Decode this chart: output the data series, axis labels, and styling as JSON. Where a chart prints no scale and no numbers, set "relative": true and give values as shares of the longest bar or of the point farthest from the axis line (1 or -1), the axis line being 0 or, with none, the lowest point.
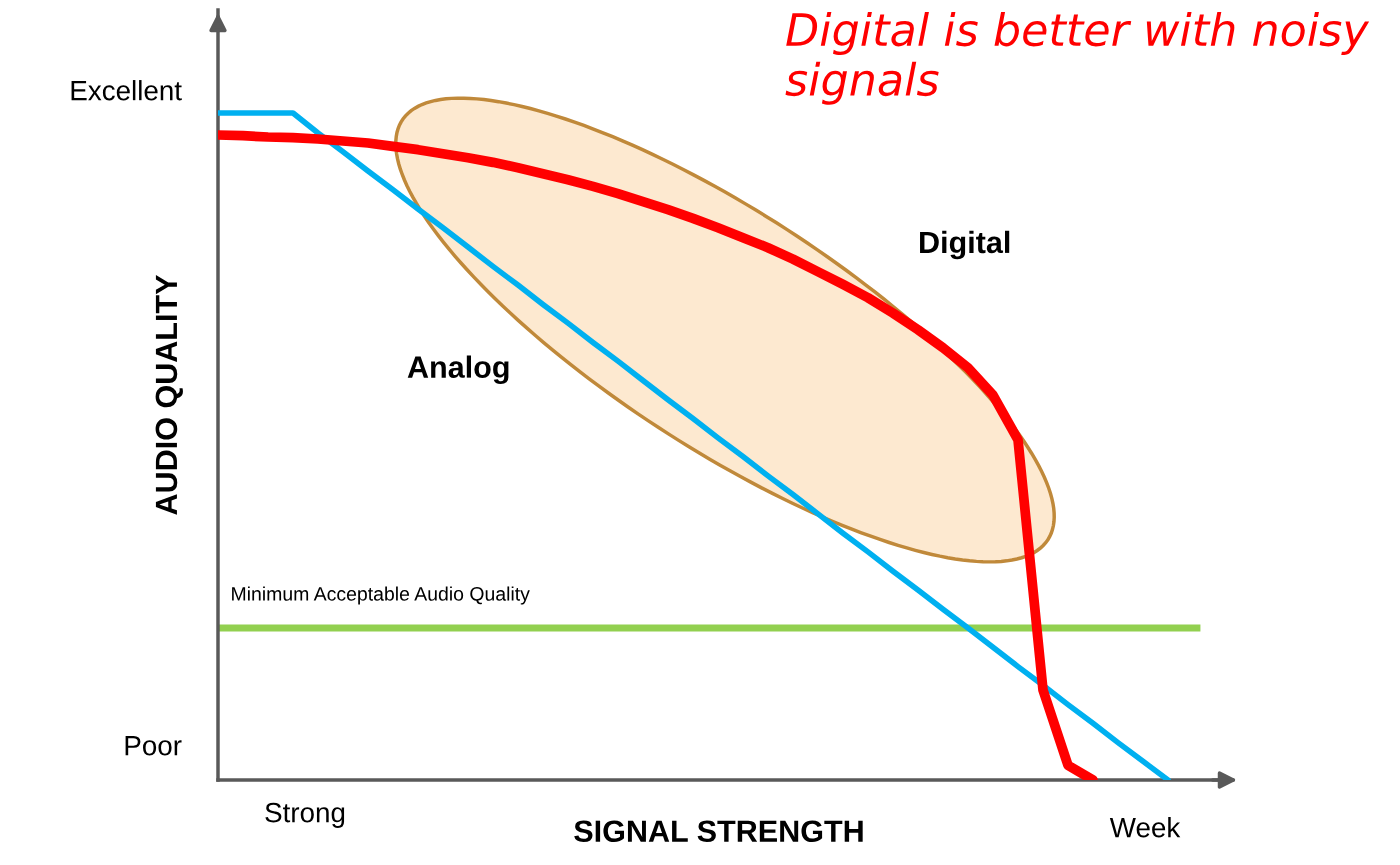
{
  "chart_data": {
    "type": "line",
    "relative": true,
    "xlabel": "SIGNAL STRENGTH",
    "ylabel": "AUDIO QUALITY",
    "categories": [
      null,
      null,
      null,
      null,
      null,
      null,
      null,
      null,
      null,
      null,
      null,
      null,
      null,
      null,
      null,
      null,
      null,
      null,
      null,
      null,
      null,
      null,
      null,
      null,
      null,
      null,
      null,
      null,
      null,
      null,
      null,
      null,
      null,
      null,
      null,
      null,
      null,
      null,
      null,
      null,
      null
    ],
    "series": [
      {
        "name": "Analog",
        "color": "#00b0f0",
        "values": [
          1,
          1,
          1,
          1,
          0.97,
          0.942,
          0.913,
          0.885,
          0.856,
          0.828,
          0.799,
          0.77,
          0.742,
          0.713,
          0.685,
          0.656,
          0.628,
          0.599,
          0.57,
          0.542,
          0.513,
          0.485,
          0.456,
          0.428,
          0.399,
          0.37,
          0.342,
          0.313,
          0.285,
          0.256,
          0.228,
          0.199,
          0.17,
          0.142,
          0.113,
          0.085,
          0.056,
          0.028,
          0,
          null,
          null
        ]
      },
      {
        "name": "Digital",
        "color": "#ff0000",
        "values": [
          0.967,
          0.966,
          0.964,
          0.963,
          0.961,
          0.958,
          0.955,
          0.95,
          0.945,
          0.939,
          0.933,
          0.926,
          0.918,
          0.909,
          0.9,
          0.89,
          0.879,
          0.867,
          0.855,
          0.842,
          0.828,
          0.813,
          0.798,
          0.781,
          0.762,
          0.743,
          0.723,
          0.7,
          0.675,
          0.648,
          0.618,
          0.577,
          0.51,
          0.135,
          0.022,
          0,
          null,
          null,
          null,
          null,
          null
        ]
      }
    ],
    "ref_lines": [
      {
        "axis": "y",
        "value": 0.228,
        "label": "Minimum Acceptable Audio Quality",
        "color": "#92d050"
      }
    ],
    "annotations": [
      "Excellent",
      "Poor",
      "Strong",
      "Week",
      "Digital is better with noisy signals"
    ],
    "legend": false,
    "grid": false,
    "marker": "none",
    "line_style": "solid"
  }
}
